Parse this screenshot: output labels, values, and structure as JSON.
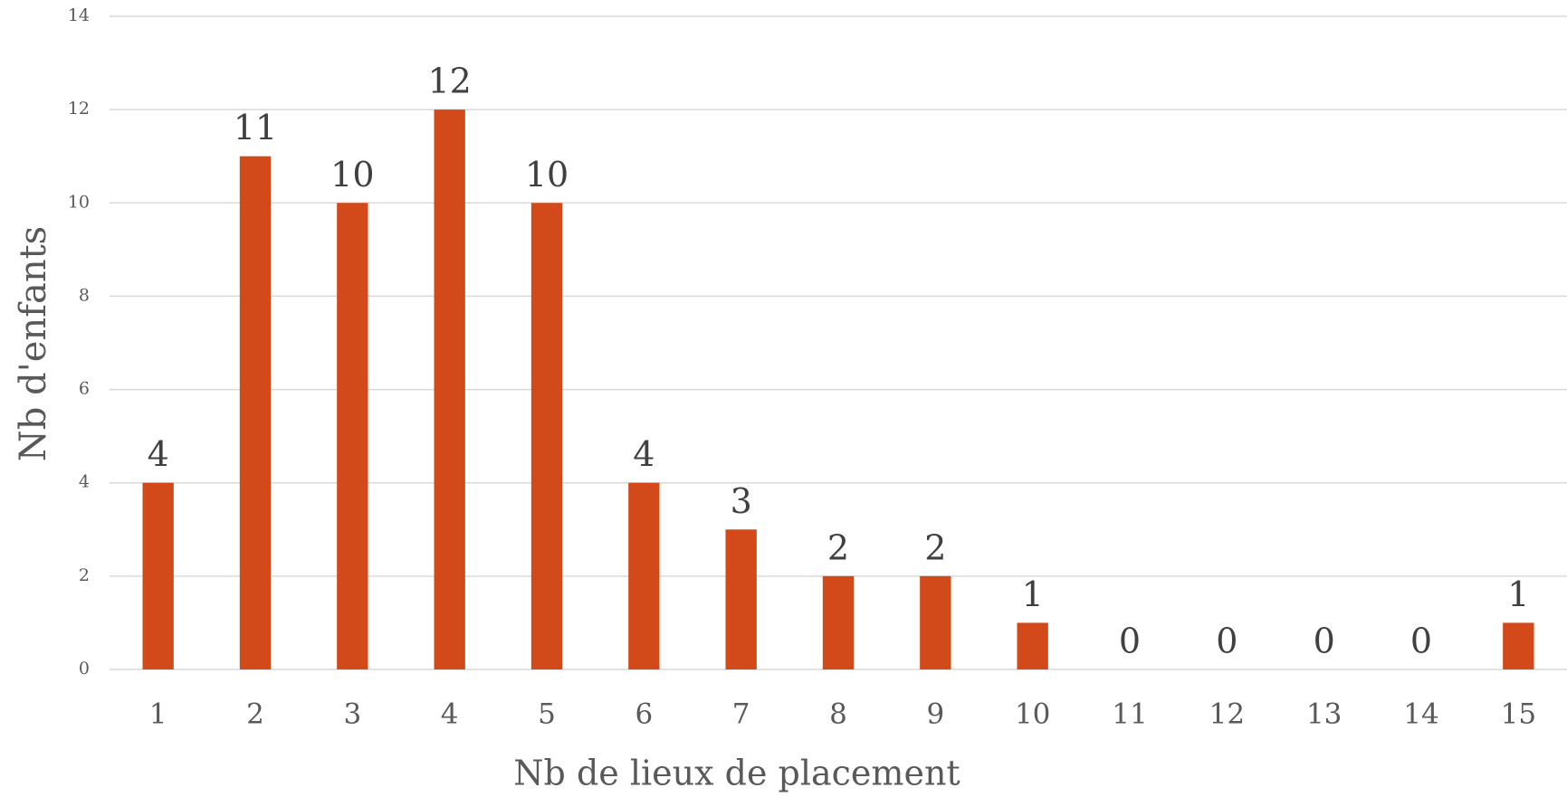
{
  "chart_data": {
    "type": "bar",
    "x_label": "Nb de lieux de placement",
    "y_label": "Nb d'enfants",
    "categories": [
      "1",
      "2",
      "3",
      "4",
      "5",
      "6",
      "7",
      "8",
      "9",
      "10",
      "11",
      "12",
      "13",
      "14",
      "15"
    ],
    "values": [
      4,
      11,
      10,
      12,
      10,
      4,
      3,
      2,
      2,
      1,
      0,
      0,
      0,
      0,
      1
    ],
    "color": "#d24a19",
    "ylim": [
      0,
      14
    ],
    "yticks": [
      0,
      2,
      4,
      6,
      8,
      10,
      12,
      14
    ],
    "grid": true
  }
}
